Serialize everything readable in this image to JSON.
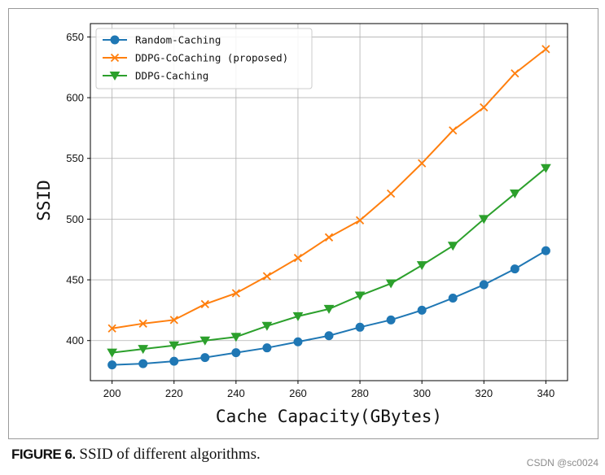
{
  "chart_data": {
    "type": "line",
    "title": "",
    "xlabel": "Cache Capacity(GBytes)",
    "ylabel": "SSID",
    "x": [
      200,
      210,
      220,
      230,
      240,
      250,
      260,
      270,
      280,
      290,
      300,
      310,
      320,
      330,
      340
    ],
    "xticks": [
      200,
      220,
      240,
      260,
      280,
      300,
      320,
      340
    ],
    "yticks": [
      400,
      450,
      500,
      550,
      600,
      650
    ],
    "xlim": [
      193,
      347
    ],
    "ylim": [
      367,
      661
    ],
    "grid": true,
    "legend_position": "top-left",
    "series": [
      {
        "name": "Random-Caching",
        "color": "#1f77b4",
        "marker": "circle",
        "values": [
          380,
          381,
          383,
          386,
          390,
          394,
          399,
          404,
          411,
          417,
          425,
          435,
          446,
          459,
          474
        ]
      },
      {
        "name": "DDPG-CoCaching (proposed)",
        "color": "#ff7f0e",
        "marker": "x",
        "values": [
          410,
          414,
          417,
          430,
          439,
          453,
          468,
          485,
          499,
          521,
          546,
          573,
          592,
          620,
          640
        ]
      },
      {
        "name": "DDPG-Caching",
        "color": "#2ca02c",
        "marker": "triangle-down",
        "values": [
          390,
          393,
          396,
          400,
          403,
          412,
          420,
          426,
          437,
          447,
          462,
          478,
          500,
          521,
          542
        ]
      }
    ]
  },
  "caption": {
    "label": "FIGURE 6.",
    "text": "SSID of different algorithms."
  },
  "watermark": "CSDN @sc0024"
}
